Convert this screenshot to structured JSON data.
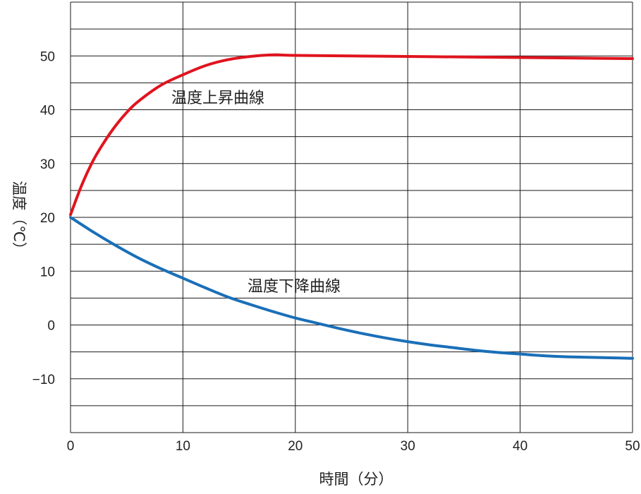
{
  "chart_data": {
    "type": "line",
    "xlabel": "時間（分）",
    "ylabel": "温度（℃）",
    "xlim": [
      0,
      50
    ],
    "ylim": [
      -20,
      60
    ],
    "x_ticks": [
      "0",
      "10",
      "20",
      "30",
      "40",
      "50"
    ],
    "y_ticks": [
      "−10",
      "0",
      "10",
      "20",
      "30",
      "40",
      "50"
    ],
    "x_tick_values": [
      0,
      10,
      20,
      30,
      40,
      50
    ],
    "y_tick_values": [
      -10,
      0,
      10,
      20,
      30,
      40,
      50
    ],
    "grid": true,
    "series": [
      {
        "name": "温度上昇曲線",
        "color": "#e0141e",
        "x": [
          0,
          1,
          2,
          3,
          4,
          5,
          6,
          8,
          10,
          12,
          14,
          16,
          18,
          20,
          25,
          30,
          35,
          40,
          45,
          50
        ],
        "y": [
          20.5,
          26,
          30.5,
          34,
          37,
          39.5,
          41.5,
          44.5,
          46.5,
          48.2,
          49.3,
          49.9,
          50.2,
          50.1,
          50.0,
          49.9,
          49.8,
          49.7,
          49.6,
          49.5
        ]
      },
      {
        "name": "温度下降曲線",
        "color": "#1a6fb8",
        "x": [
          0,
          2,
          4,
          6,
          8,
          10,
          12,
          14,
          16,
          18,
          20,
          22,
          24,
          26,
          28,
          30,
          32,
          34,
          36,
          38,
          40,
          42,
          44,
          46,
          48,
          50
        ],
        "y": [
          20,
          17.3,
          14.8,
          12.5,
          10.5,
          8.7,
          6.9,
          5.2,
          3.8,
          2.5,
          1.3,
          0.3,
          -0.7,
          -1.6,
          -2.4,
          -3.1,
          -3.7,
          -4.2,
          -4.7,
          -5.1,
          -5.4,
          -5.7,
          -5.9,
          -6.0,
          -6.1,
          -6.2
        ]
      }
    ]
  }
}
